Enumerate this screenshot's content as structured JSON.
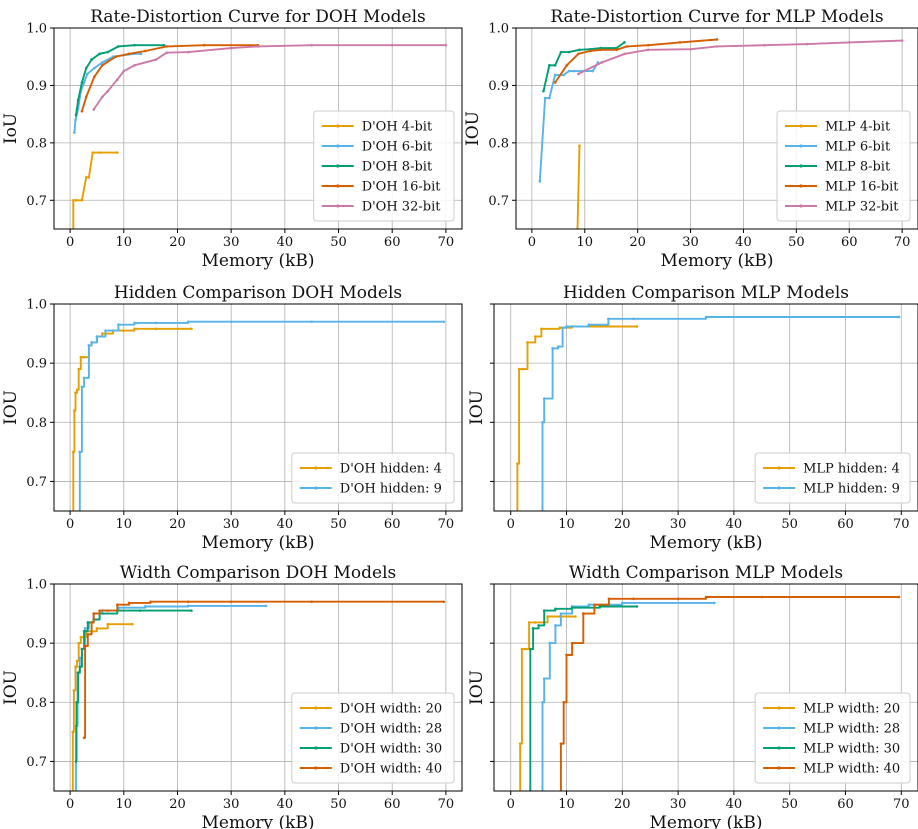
{
  "colors": {
    "orange": "#E69F00",
    "skyblue": "#56B4E9",
    "green": "#009E73",
    "vermillion": "#D55E00",
    "pink": "#CC79A7",
    "grid": "#b0b0b0",
    "axis": "#000000"
  },
  "chart_data": [
    {
      "type": "line",
      "title": "Rate-Distortion Curve for DOH Models",
      "xlabel": "Memory (kB)",
      "ylabel": "IoU",
      "xlim": [
        -3,
        73
      ],
      "ylim": [
        0.65,
        1.0
      ],
      "xticks": [
        0,
        10,
        20,
        30,
        40,
        50,
        60,
        70
      ],
      "yticks": [
        0.7,
        0.8,
        0.9,
        1.0
      ],
      "grid": true,
      "show_yticklabels": true,
      "legend": "lower right",
      "series": [
        {
          "name": "D'OH 4-bit",
          "color": "orange",
          "x": [
            0.6,
            0.6,
            1.1,
            2.2,
            3.0,
            3.5,
            4.2,
            5.5,
            8.8
          ],
          "y": [
            0.6,
            0.7,
            0.7,
            0.7,
            0.74,
            0.74,
            0.783,
            0.783,
            0.783
          ]
        },
        {
          "name": "D'OH 6-bit",
          "color": "skyblue",
          "x": [
            0.8,
            1.0,
            1.5,
            2.0,
            2.6,
            3.2,
            4.5,
            6.0,
            8.0,
            12.0,
            13.2
          ],
          "y": [
            0.818,
            0.84,
            0.86,
            0.89,
            0.905,
            0.92,
            0.93,
            0.94,
            0.95,
            0.955,
            0.955
          ]
        },
        {
          "name": "D'OH 8-bit",
          "color": "green",
          "x": [
            1.1,
            1.5,
            2.2,
            3.0,
            4.0,
            5.5,
            7.0,
            9.0,
            12.0,
            17.5
          ],
          "y": [
            0.848,
            0.875,
            0.905,
            0.93,
            0.945,
            0.955,
            0.958,
            0.968,
            0.97,
            0.97
          ]
        },
        {
          "name": "D'OH 16-bit",
          "color": "vermillion",
          "x": [
            2.2,
            3.0,
            4.5,
            6.0,
            8.5,
            11.0,
            14.0,
            18.0,
            25.0,
            35.0
          ],
          "y": [
            0.855,
            0.88,
            0.915,
            0.935,
            0.95,
            0.955,
            0.96,
            0.968,
            0.97,
            0.97
          ]
        },
        {
          "name": "D'OH 32-bit",
          "color": "pink",
          "x": [
            4.4,
            6.0,
            7.0,
            8.8,
            10.0,
            12.0,
            16.0,
            18.0,
            22.0,
            30.0,
            35.0,
            45.0,
            60.0,
            70.0
          ],
          "y": [
            0.858,
            0.88,
            0.89,
            0.91,
            0.925,
            0.935,
            0.945,
            0.957,
            0.958,
            0.965,
            0.968,
            0.97,
            0.97,
            0.97
          ]
        }
      ]
    },
    {
      "type": "line",
      "title": "Rate-Distortion Curve for MLP Models",
      "xlabel": "Memory (kB)",
      "ylabel": "IOU",
      "xlim": [
        -3,
        73
      ],
      "ylim": [
        0.65,
        1.0
      ],
      "xticks": [
        0,
        10,
        20,
        30,
        40,
        50,
        60,
        70
      ],
      "yticks": [
        0.7,
        0.8,
        0.9,
        1.0
      ],
      "grid": true,
      "show_yticklabels": true,
      "legend": "lower right",
      "series": [
        {
          "name": "MLP 4-bit",
          "color": "orange",
          "x": [
            8.5,
            9.0
          ],
          "y": [
            0.6,
            0.795
          ]
        },
        {
          "name": "MLP 6-bit",
          "color": "skyblue",
          "x": [
            1.5,
            2.5,
            3.3,
            4.4,
            6.0,
            7.0,
            8.0,
            9.5,
            11.5,
            12.5
          ],
          "y": [
            0.733,
            0.878,
            0.878,
            0.918,
            0.918,
            0.925,
            0.925,
            0.925,
            0.925,
            0.94
          ]
        },
        {
          "name": "MLP 8-bit",
          "color": "green",
          "x": [
            2.2,
            3.3,
            4.4,
            5.5,
            7.0,
            9.0,
            11.0,
            13.0,
            16.0,
            17.5
          ],
          "y": [
            0.89,
            0.935,
            0.935,
            0.958,
            0.958,
            0.962,
            0.963,
            0.965,
            0.965,
            0.975
          ]
        },
        {
          "name": "MLP 16-bit",
          "color": "vermillion",
          "x": [
            4.4,
            6.6,
            8.8,
            11.0,
            13.0,
            16.0,
            18.0,
            22.0,
            28.0,
            35.0
          ],
          "y": [
            0.905,
            0.935,
            0.955,
            0.96,
            0.962,
            0.962,
            0.968,
            0.97,
            0.975,
            0.98
          ]
        },
        {
          "name": "MLP 32-bit",
          "color": "pink",
          "x": [
            8.8,
            13.2,
            17.6,
            22.0,
            30.0,
            35.0,
            44.0,
            52.0,
            60.0,
            70.0
          ],
          "y": [
            0.92,
            0.94,
            0.955,
            0.962,
            0.963,
            0.968,
            0.97,
            0.972,
            0.975,
            0.978
          ]
        }
      ]
    },
    {
      "type": "line",
      "step": true,
      "title": "Hidden Comparison DOH Models",
      "xlabel": "Memory (kB)",
      "ylabel": "IOU",
      "xlim": [
        -3,
        73
      ],
      "ylim": [
        0.65,
        1.0
      ],
      "xticks": [
        0,
        10,
        20,
        30,
        40,
        50,
        60,
        70
      ],
      "yticks": [
        0.7,
        0.8,
        0.9,
        1.0
      ],
      "grid": true,
      "show_yticklabels": true,
      "legend": "lower right",
      "series": [
        {
          "name": "D'OH hidden: 4",
          "color": "orange",
          "x": [
            0.5,
            0.6,
            0.8,
            1.0,
            1.3,
            1.6,
            2.0,
            2.5,
            3.5,
            4.0,
            5.0,
            6.0,
            8.0,
            10.0,
            12.0,
            16.0,
            22.6
          ],
          "y": [
            0.6,
            0.75,
            0.82,
            0.85,
            0.855,
            0.89,
            0.91,
            0.91,
            0.93,
            0.935,
            0.945,
            0.95,
            0.955,
            0.955,
            0.958,
            0.958,
            0.958
          ]
        },
        {
          "name": "D'OH hidden: 9",
          "color": "skyblue",
          "x": [
            1.6,
            1.8,
            2.2,
            2.6,
            3.5,
            4.0,
            5.0,
            6.6,
            9.0,
            12.0,
            16.0,
            22.0,
            30.0,
            45.0,
            69.6
          ],
          "y": [
            0.6,
            0.75,
            0.86,
            0.875,
            0.93,
            0.935,
            0.945,
            0.955,
            0.965,
            0.968,
            0.968,
            0.97,
            0.97,
            0.97,
            0.97
          ]
        }
      ]
    },
    {
      "type": "line",
      "step": true,
      "title": "Hidden Comparison MLP Models",
      "xlabel": "Memory (kB)",
      "ylabel": "IOU",
      "xlim": [
        -3,
        73
      ],
      "ylim": [
        0.65,
        1.0
      ],
      "xticks": [
        0,
        10,
        20,
        30,
        40,
        50,
        60,
        70
      ],
      "yticks": [
        0.7,
        0.8,
        0.9,
        1.0
      ],
      "grid": true,
      "show_yticklabels": false,
      "legend": "lower right",
      "series": [
        {
          "name": "MLP hidden: 4",
          "color": "orange",
          "x": [
            1.1,
            1.2,
            1.5,
            2.2,
            3.0,
            4.4,
            5.5,
            8.8,
            11.0,
            22.6
          ],
          "y": [
            0.6,
            0.73,
            0.89,
            0.89,
            0.935,
            0.945,
            0.958,
            0.96,
            0.962,
            0.962
          ]
        },
        {
          "name": "MLP hidden: 9",
          "color": "skyblue",
          "x": [
            5.5,
            5.7,
            6.0,
            7.5,
            8.5,
            9.3,
            10.0,
            14.0,
            17.5,
            22.0,
            35.0,
            69.6
          ],
          "y": [
            0.6,
            0.8,
            0.84,
            0.925,
            0.928,
            0.96,
            0.962,
            0.965,
            0.975,
            0.975,
            0.978,
            0.978
          ]
        }
      ]
    },
    {
      "type": "line",
      "step": true,
      "title": "Width Comparison DOH Models",
      "xlabel": "Memory (kB)",
      "ylabel": "IOU",
      "xlim": [
        -3,
        73
      ],
      "ylim": [
        0.65,
        1.0
      ],
      "xticks": [
        0,
        10,
        20,
        30,
        40,
        50,
        60,
        70
      ],
      "yticks": [
        0.7,
        0.8,
        0.9,
        1.0
      ],
      "grid": true,
      "show_yticklabels": true,
      "legend": "lower right",
      "series": [
        {
          "name": "D'OH width: 20",
          "color": "orange",
          "x": [
            0.4,
            0.5,
            0.7,
            1.0,
            1.3,
            1.6,
            2.0,
            3.0,
            5.0,
            7.0,
            11.6
          ],
          "y": [
            0.6,
            0.75,
            0.82,
            0.86,
            0.87,
            0.9,
            0.91,
            0.92,
            0.925,
            0.932,
            0.932
          ]
        },
        {
          "name": "D'OH width: 28",
          "color": "skyblue",
          "x": [
            0.9,
            1.1,
            1.4,
            1.8,
            2.2,
            2.8,
            3.5,
            4.4,
            6.0,
            9.0,
            14.0,
            22.0,
            36.5
          ],
          "y": [
            0.6,
            0.76,
            0.85,
            0.875,
            0.89,
            0.925,
            0.935,
            0.95,
            0.955,
            0.96,
            0.962,
            0.963,
            0.963
          ]
        },
        {
          "name": "D'OH width: 30",
          "color": "green",
          "x": [
            1.1,
            1.2,
            1.5,
            1.8,
            2.2,
            2.6,
            3.3,
            4.4,
            5.5,
            8.8,
            13.0,
            22.6
          ],
          "y": [
            0.7,
            0.8,
            0.85,
            0.86,
            0.89,
            0.92,
            0.935,
            0.94,
            0.95,
            0.955,
            0.955,
            0.955
          ]
        },
        {
          "name": "D'OH width: 40",
          "color": "vermillion",
          "x": [
            2.6,
            2.8,
            3.3,
            4.0,
            4.4,
            5.5,
            7.0,
            8.8,
            11.0,
            15.0,
            22.0,
            30.0,
            45.0,
            69.6
          ],
          "y": [
            0.74,
            0.895,
            0.915,
            0.935,
            0.95,
            0.955,
            0.955,
            0.965,
            0.968,
            0.97,
            0.97,
            0.97,
            0.97,
            0.97
          ]
        }
      ]
    },
    {
      "type": "line",
      "step": true,
      "title": "Width Comparison MLP Models",
      "xlabel": "Memory (kB)",
      "ylabel": "IOU",
      "xlim": [
        -3,
        73
      ],
      "ylim": [
        0.65,
        1.0
      ],
      "xticks": [
        0,
        10,
        20,
        30,
        40,
        50,
        60,
        70
      ],
      "yticks": [
        0.7,
        0.8,
        0.9,
        1.0
      ],
      "grid": true,
      "show_yticklabels": false,
      "legend": "lower right",
      "series": [
        {
          "name": "MLP width: 20",
          "color": "orange",
          "x": [
            1.5,
            1.7,
            2.0,
            2.6,
            3.3,
            4.4,
            6.6,
            8.8,
            11.6
          ],
          "y": [
            0.6,
            0.73,
            0.89,
            0.89,
            0.935,
            0.935,
            0.945,
            0.945,
            0.945
          ]
        },
        {
          "name": "MLP width: 28",
          "color": "skyblue",
          "x": [
            5.5,
            5.7,
            6.0,
            7.0,
            8.0,
            9.0,
            11.0,
            14.0,
            20.0,
            36.5
          ],
          "y": [
            0.6,
            0.8,
            0.84,
            0.9,
            0.93,
            0.95,
            0.962,
            0.965,
            0.968,
            0.968
          ]
        },
        {
          "name": "MLP width: 30",
          "color": "green",
          "x": [
            3.3,
            3.5,
            4.0,
            5.0,
            6.0,
            8.0,
            11.0,
            16.0,
            22.6
          ],
          "y": [
            0.6,
            0.89,
            0.925,
            0.93,
            0.955,
            0.958,
            0.96,
            0.962,
            0.962
          ]
        },
        {
          "name": "MLP width: 40",
          "color": "vermillion",
          "x": [
            8.8,
            9.0,
            9.5,
            10.0,
            11.0,
            13.0,
            15.0,
            17.6,
            22.0,
            30.0,
            35.0,
            45.0,
            69.6
          ],
          "y": [
            0.6,
            0.73,
            0.8,
            0.88,
            0.9,
            0.95,
            0.965,
            0.975,
            0.975,
            0.975,
            0.978,
            0.978,
            0.978
          ]
        }
      ]
    }
  ]
}
